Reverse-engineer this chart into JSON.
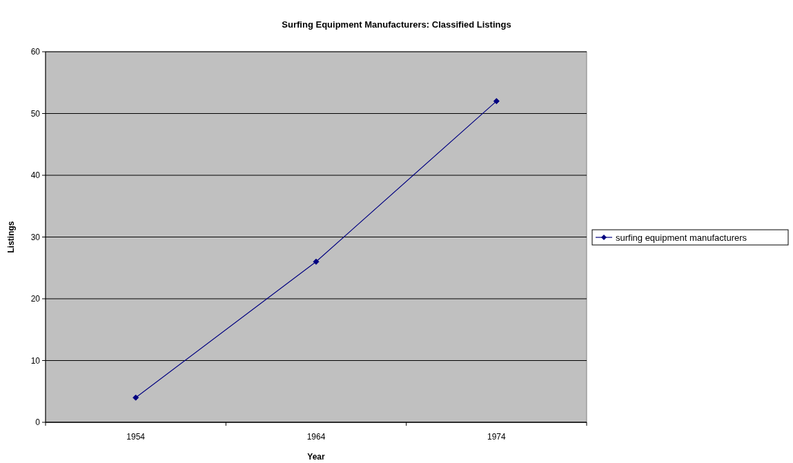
{
  "chart_data": {
    "type": "line",
    "title": "Surfing Equipment Manufacturers: Classified Listings",
    "xlabel": "Year",
    "ylabel": "Listings",
    "categories": [
      "1954",
      "1964",
      "1974"
    ],
    "series": [
      {
        "name": "surfing equipment manufacturers",
        "color": "#000080",
        "values": [
          4,
          26,
          52
        ]
      }
    ],
    "ylim": [
      0,
      60
    ],
    "yticks": [
      0,
      10,
      20,
      30,
      40,
      50,
      60
    ],
    "grid": "y",
    "legend": "right",
    "marker": "diamond",
    "line_style": "solid"
  }
}
